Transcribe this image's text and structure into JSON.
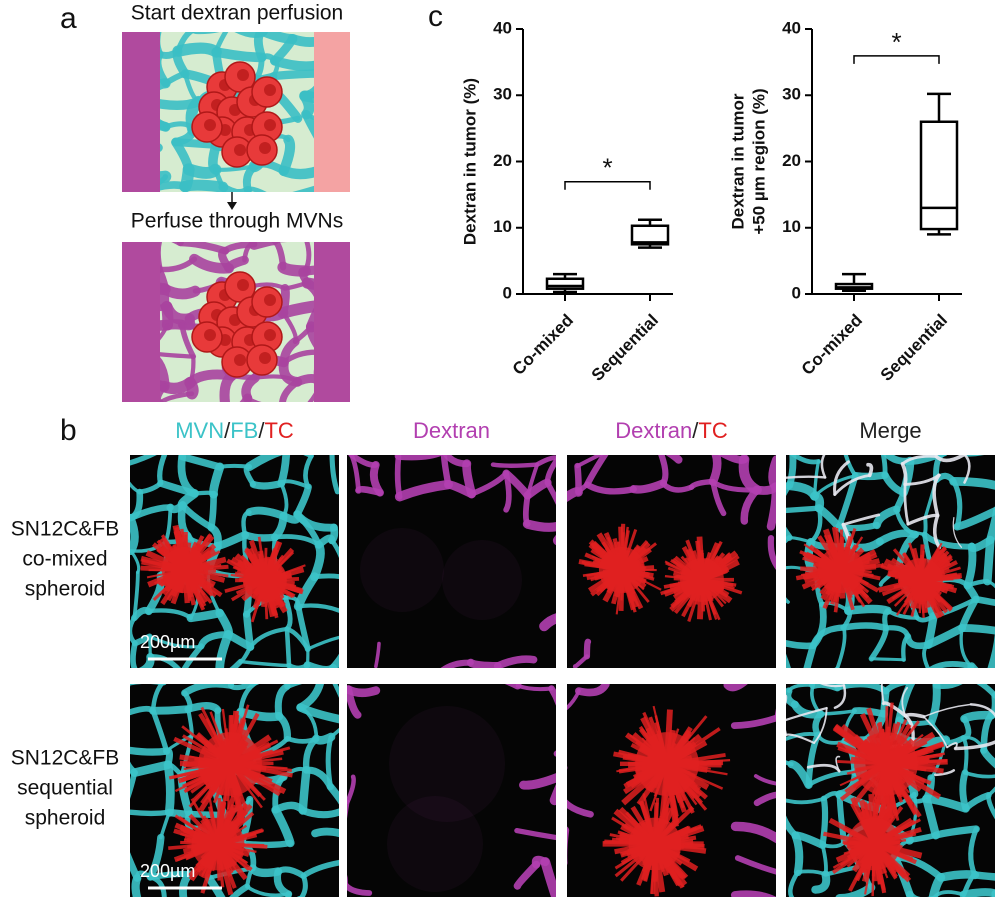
{
  "panel_labels": [
    "a",
    "b",
    "c"
  ],
  "schematic": {
    "top_caption": "Start dextran perfusion",
    "bottom_caption": "Perfuse through MVNs"
  },
  "images": {
    "column_headers": [
      [
        {
          "text": "MVN",
          "color": "#3cc3c8"
        },
        {
          "text": "/",
          "color": "#222222"
        },
        {
          "text": "FB",
          "color": "#3cc3c8"
        },
        {
          "text": "/",
          "color": "#222222"
        },
        {
          "text": "TC",
          "color": "#e02020"
        }
      ],
      [
        {
          "text": "Dextran",
          "color": "#b23fb0"
        }
      ],
      [
        {
          "text": "Dextran",
          "color": "#b23fb0"
        },
        {
          "text": "/",
          "color": "#222222"
        },
        {
          "text": "TC",
          "color": "#e02020"
        }
      ],
      [
        {
          "text": "Merge",
          "color": "#222222"
        }
      ]
    ],
    "row_labels": [
      [
        "SN12C&FB",
        "co-mixed",
        "spheroid"
      ],
      [
        "SN12C&FB",
        "sequential",
        "spheroid"
      ]
    ],
    "scale_bar": "200µm"
  },
  "chart_data": [
    {
      "type": "box",
      "ylabel": [
        "Dextran in tumor (%)"
      ],
      "categories": [
        "Co-mixed",
        "Sequential"
      ],
      "boxes": [
        {
          "min": 0.3,
          "q1": 0.8,
          "median": 1.2,
          "q3": 2.3,
          "max": 3.0
        },
        {
          "min": 7.0,
          "q1": 7.5,
          "median": 7.8,
          "q3": 10.3,
          "max": 11.2
        }
      ],
      "ylim": [
        0,
        40
      ],
      "yticks": [
        0,
        10,
        20,
        30,
        40
      ],
      "significance": "*",
      "color": "#000000"
    },
    {
      "type": "box",
      "ylabel": [
        "Dextran in tumor",
        "+50 µm region (%)"
      ],
      "categories": [
        "Co-mixed",
        "Sequential"
      ],
      "boxes": [
        {
          "min": 0.5,
          "q1": 0.8,
          "median": 1.0,
          "q3": 1.5,
          "max": 3.0
        },
        {
          "min": 9.0,
          "q1": 9.8,
          "median": 13.0,
          "q3": 26.0,
          "max": 30.2
        }
      ],
      "ylim": [
        0,
        40
      ],
      "yticks": [
        0,
        10,
        20,
        30,
        40
      ],
      "significance": "*",
      "color": "#000000"
    }
  ]
}
